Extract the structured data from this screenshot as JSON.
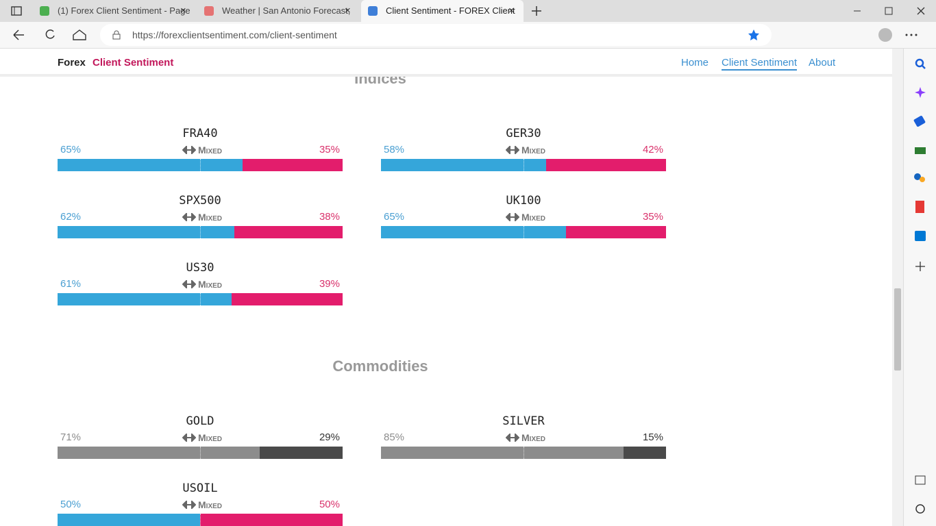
{
  "browser": {
    "tabs": [
      "(1) Forex Client Sentiment - Page",
      "Weather | San Antonio Forecast,",
      "Client Sentiment - FOREX Client"
    ],
    "active_tab": 2,
    "url": "https://forexclientsentiment.com/client-sentiment"
  },
  "site": {
    "brand": [
      "Forex",
      "Client Sentiment"
    ],
    "nav": [
      "Home",
      "Client Sentiment",
      "About"
    ],
    "active_nav": 1
  },
  "sections": [
    {
      "title": "Indices",
      "items": [
        {
          "symbol": "FRA40",
          "long": 65,
          "long_label": "65%",
          "short": 35,
          "short_label": "35%",
          "sentiment": "Mixed",
          "colors": [
            "#35a6da",
            "#e31d6c"
          ],
          "label_colors": [
            "#4a9fd2",
            "#d9316b"
          ]
        },
        {
          "symbol": "GER30",
          "long": 58,
          "long_label": "58%",
          "short": 42,
          "short_label": "42%",
          "sentiment": "Mixed",
          "colors": [
            "#35a6da",
            "#e31d6c"
          ],
          "label_colors": [
            "#4a9fd2",
            "#d9316b"
          ]
        },
        {
          "symbol": "SPX500",
          "long": 62,
          "long_label": "62%",
          "short": 38,
          "short_label": "38%",
          "sentiment": "Mixed",
          "colors": [
            "#35a6da",
            "#e31d6c"
          ],
          "label_colors": [
            "#4a9fd2",
            "#d9316b"
          ]
        },
        {
          "symbol": "UK100",
          "long": 65,
          "long_label": "65%",
          "short": 35,
          "short_label": "35%",
          "sentiment": "Mixed",
          "colors": [
            "#35a6da",
            "#e31d6c"
          ],
          "label_colors": [
            "#4a9fd2",
            "#d9316b"
          ]
        },
        {
          "symbol": "US30",
          "long": 61,
          "long_label": "61%",
          "short": 39,
          "short_label": "39%",
          "sentiment": "Mixed",
          "colors": [
            "#35a6da",
            "#e31d6c"
          ],
          "label_colors": [
            "#4a9fd2",
            "#d9316b"
          ]
        }
      ]
    },
    {
      "title": "Commodities",
      "items": [
        {
          "symbol": "GOLD",
          "long": 71,
          "long_label": "71%",
          "short": 29,
          "short_label": "29%",
          "sentiment": "Mixed",
          "colors": [
            "#8c8c8c",
            "#4a4a4a"
          ],
          "label_colors": [
            "#8c8c8c",
            "#333333"
          ]
        },
        {
          "symbol": "SILVER",
          "long": 85,
          "long_label": "85%",
          "short": 15,
          "short_label": "15%",
          "sentiment": "Mixed",
          "colors": [
            "#8c8c8c",
            "#4a4a4a"
          ],
          "label_colors": [
            "#8c8c8c",
            "#333333"
          ]
        },
        {
          "symbol": "USOIL",
          "long": 50,
          "long_label": "50%",
          "short": 50,
          "short_label": "50%",
          "sentiment": "Mixed",
          "colors": [
            "#35a6da",
            "#e31d6c"
          ],
          "label_colors": [
            "#4a9fd2",
            "#d9316b"
          ]
        }
      ]
    }
  ]
}
